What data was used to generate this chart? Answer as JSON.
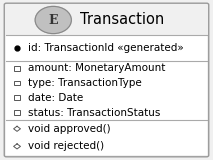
{
  "title": "Transaction",
  "entity_letter": "E",
  "border_color": "#999999",
  "line_color": "#aaaaaa",
  "section_bg": "#ffffff",
  "header_bg": "#f0f0f0",
  "outer_bg": "#f0f0f0",
  "text_color": "#000000",
  "id_field": "id: TransactionId «generated»",
  "attributes": [
    "amount: MonetaryAmount",
    "type: TransactionType",
    "date: Date",
    "status: TransactionStatus"
  ],
  "methods": [
    "void approved()",
    "void rejected()"
  ],
  "font_size": 7.5,
  "title_font_size": 10.5,
  "circle_letter_size": 9
}
